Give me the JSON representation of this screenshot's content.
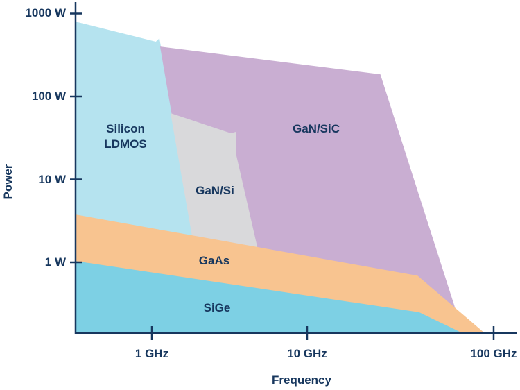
{
  "chart_data": {
    "type": "area",
    "xlabel": "Frequency",
    "ylabel": "Power",
    "x_scale": "log",
    "y_scale": "log",
    "xlim_ghz": [
      0.32,
      140
    ],
    "ylim_w": [
      0.14,
      1500
    ],
    "grid": false,
    "x_ticks": [
      {
        "value": 1,
        "label": "1 GHz"
      },
      {
        "value": 10,
        "label": "10 GHz"
      },
      {
        "value": 100,
        "label": "100 GHz"
      }
    ],
    "y_ticks": [
      {
        "value": 1000,
        "label": "1000 W"
      },
      {
        "value": 100,
        "label": "100 W"
      },
      {
        "value": 10,
        "label": "10 W"
      },
      {
        "value": 1,
        "label": "1 W"
      }
    ],
    "regions": [
      {
        "name": "Silicon LDMOS",
        "color": "#b5e3ef",
        "points": [
          [
            0.32,
            801
          ],
          [
            1.06,
            458
          ],
          [
            1.12,
            504
          ],
          [
            1.83,
            2.08
          ],
          [
            1.83,
            0.96
          ],
          [
            0.32,
            0.96
          ]
        ]
      },
      {
        "name": "GaN/SiC",
        "color": "#c9aed2",
        "points": [
          [
            1.13,
            400
          ],
          [
            24.7,
            185
          ],
          [
            62.5,
            0.27
          ],
          [
            4.72,
            0.14
          ],
          [
            1.83,
            2.08
          ]
        ]
      },
      {
        "name": "GaN/Si",
        "color": "#d9d9db",
        "points": [
          [
            1.32,
            63
          ],
          [
            3.23,
            36
          ],
          [
            3.47,
            37.4
          ],
          [
            3.47,
            21
          ],
          [
            4.82,
            1.42
          ],
          [
            1.83,
            1.89
          ]
        ]
      },
      {
        "name": "GaAs",
        "color": "#f8c490",
        "points": [
          [
            0.32,
            3.78
          ],
          [
            39.1,
            0.69
          ],
          [
            89.5,
            0.14
          ],
          [
            0.32,
            0.14
          ]
        ]
      },
      {
        "name": "SiGe",
        "color": "#7dd0e4",
        "points": [
          [
            0.32,
            1.04
          ],
          [
            39.8,
            0.25
          ],
          [
            68.1,
            0.14
          ],
          [
            0.32,
            0.14
          ]
        ]
      }
    ],
    "region_labels": {
      "silicon_ldmos": [
        "Silicon",
        "LDMOS"
      ],
      "gan_sic": "GaN/SiC",
      "gan_si": "GaN/Si",
      "gaas": "GaAs",
      "sige": "SiGe"
    },
    "axis_color": "#17375e"
  }
}
